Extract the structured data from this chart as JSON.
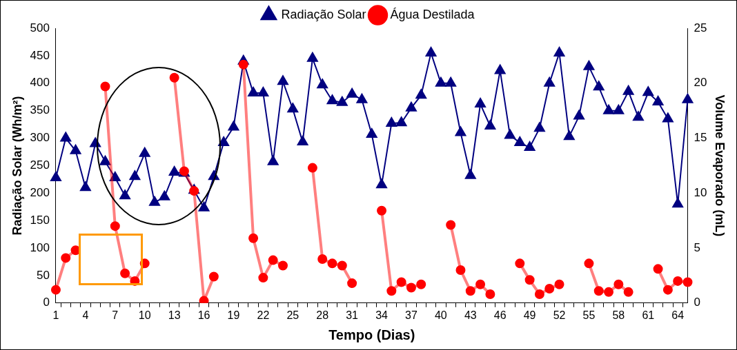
{
  "chart_data": {
    "type": "line",
    "xlabel": "Tempo (Dias)",
    "ylabel": "Radiação Solar (Wh/m²)",
    "y2label": "Volume Evaporado (mL)",
    "categories": [
      "1",
      null,
      null,
      "4",
      null,
      null,
      "7",
      null,
      null,
      "10",
      null,
      null,
      "13",
      null,
      null,
      "16",
      null,
      null,
      "19",
      null,
      null,
      "22",
      null,
      null,
      "25",
      null,
      null,
      "28",
      null,
      null,
      "31",
      null,
      null,
      "34",
      null,
      null,
      "37",
      null,
      null,
      "40",
      null,
      null,
      "43",
      null,
      null,
      "46",
      null,
      null,
      "49",
      null,
      null,
      "52",
      null,
      null,
      "55",
      null,
      null,
      "58",
      null,
      null,
      "61",
      null,
      null,
      "64",
      null
    ],
    "series": [
      {
        "name": "Radiação Solar",
        "color": "#000080",
        "marker": "triangle",
        "values": [
          228,
          300,
          277,
          210,
          290,
          257,
          228,
          195,
          230,
          272,
          183,
          193,
          238,
          236,
          205,
          173,
          230,
          292,
          320,
          440,
          382,
          382,
          257,
          403,
          353,
          293,
          445,
          397,
          368,
          365,
          380,
          370,
          307,
          215,
          327,
          328,
          355,
          378,
          455,
          400,
          400,
          310,
          232,
          362,
          322,
          423,
          305,
          292,
          283,
          318,
          400,
          455,
          303,
          340,
          430,
          393,
          350,
          350,
          385,
          338,
          383,
          366,
          335,
          180,
          370
        ]
      },
      {
        "name": "Água Destilada",
        "color": "#ff0000",
        "marker": "circle",
        "axis": "y2",
        "values": [
          1.2,
          4.1,
          4.8,
          null,
          null,
          19.7,
          7.0,
          2.7,
          2.0,
          3.6,
          null,
          null,
          20.5,
          12.0,
          10.2,
          0.2,
          2.4,
          null,
          null,
          21.7,
          5.9,
          2.3,
          3.9,
          3.4,
          null,
          null,
          12.3,
          4.0,
          3.6,
          3.4,
          1.8,
          null,
          null,
          8.4,
          1.1,
          1.9,
          1.4,
          1.7,
          null,
          null,
          7.1,
          3.0,
          1.1,
          1.7,
          0.8,
          null,
          null,
          3.6,
          2.1,
          0.8,
          1.3,
          1.7,
          null,
          null,
          3.6,
          1.1,
          1.0,
          1.7,
          1.0,
          null,
          null,
          3.1,
          1.2,
          2.0,
          1.9
        ]
      }
    ],
    "ylim": [
      0,
      500
    ],
    "yticks": [
      0,
      50,
      100,
      150,
      200,
      250,
      300,
      350,
      400,
      450,
      500
    ],
    "y2lim": [
      0,
      25
    ],
    "y2ticks": [
      0,
      5,
      10,
      15,
      20,
      25
    ],
    "grid": false,
    "legend": "top"
  }
}
